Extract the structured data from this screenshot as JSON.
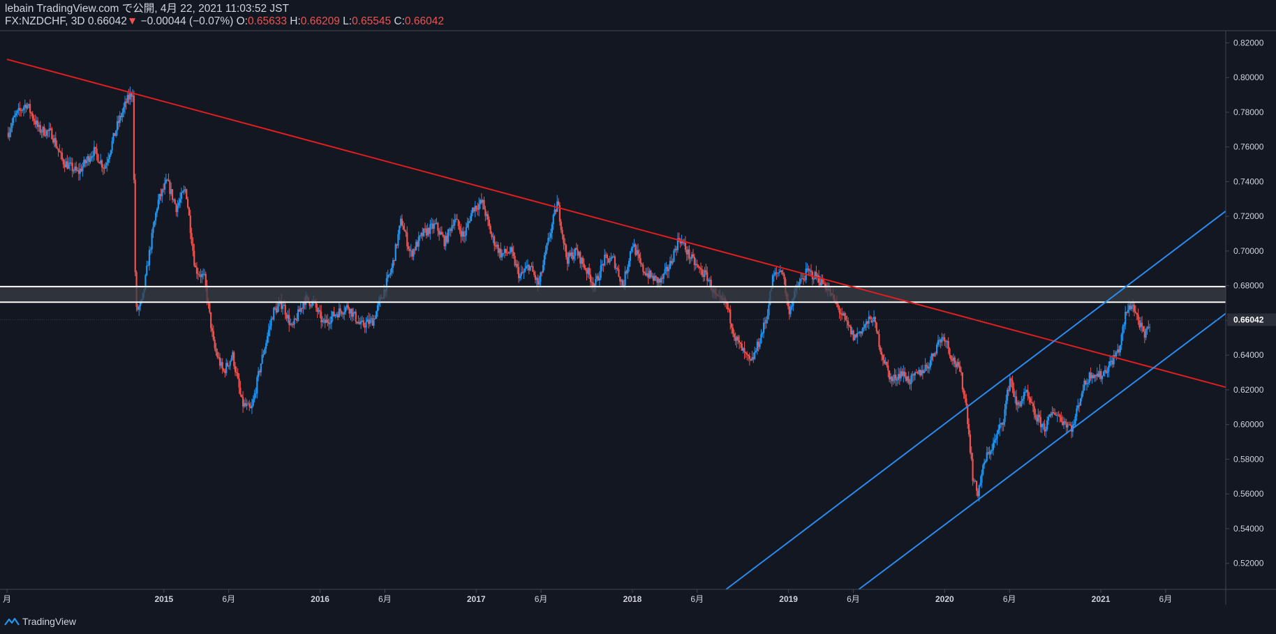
{
  "header": {
    "published_line": "lebain TradingView.com で公開, 4月 22, 2021 11:03:52 JST",
    "symbol": "FX:NZDCHF, 3D",
    "last": "0.66042",
    "change_arrow": "▼",
    "change": "−0.00044 (−0.07%)",
    "o_label": "O:",
    "o_value": "0.65633",
    "h_label": "H:",
    "h_value": "0.66209",
    "l_label": "L:",
    "l_value": "0.65545",
    "c_label": "C:",
    "c_value": "0.66042"
  },
  "footer": {
    "brand": "TradingView"
  },
  "colors": {
    "background": "#131722",
    "up": "#2196f3",
    "down": "#ef5350",
    "trendline": "#e01e1e",
    "channel": "#2a8cf0",
    "zone_line": "#ffffff",
    "zone_fill": "#3a3d45",
    "axis_text": "#d1d4dc"
  },
  "chart_data": {
    "type": "candlestick",
    "symbol": "FX:NZDCHF",
    "interval": "3D",
    "ylim": [
      0.505,
      0.827
    ],
    "y_ticks": [
      "0.82000",
      "0.80000",
      "0.78000",
      "0.76000",
      "0.74000",
      "0.72000",
      "0.70000",
      "0.68000",
      "0.66000",
      "0.64000",
      "0.62000",
      "0.60000",
      "0.58000",
      "0.56000",
      "0.54000",
      "0.52000"
    ],
    "last_price_label": "0.66042",
    "last_price": 0.66042,
    "x_ticks": [
      {
        "label": "月",
        "t": 2013.995
      },
      {
        "label": "2015",
        "t": 2015.0
      },
      {
        "label": "6月",
        "t": 2015.415
      },
      {
        "label": "2016",
        "t": 2016.0
      },
      {
        "label": "6月",
        "t": 2016.415
      },
      {
        "label": "2017",
        "t": 2017.0
      },
      {
        "label": "6月",
        "t": 2017.415
      },
      {
        "label": "2018",
        "t": 2018.0
      },
      {
        "label": "6月",
        "t": 2018.415
      },
      {
        "label": "2019",
        "t": 2019.0
      },
      {
        "label": "6月",
        "t": 2019.415
      },
      {
        "label": "2020",
        "t": 2020.0
      },
      {
        "label": "6月",
        "t": 2020.415
      },
      {
        "label": "2021",
        "t": 2021.0
      },
      {
        "label": "6月",
        "t": 2021.415
      }
    ],
    "price_path": [
      [
        2014.0,
        0.768
      ],
      [
        2014.05,
        0.778
      ],
      [
        2014.12,
        0.785
      ],
      [
        2014.2,
        0.77
      ],
      [
        2014.28,
        0.768
      ],
      [
        2014.35,
        0.752
      ],
      [
        2014.45,
        0.745
      ],
      [
        2014.55,
        0.758
      ],
      [
        2014.62,
        0.748
      ],
      [
        2014.7,
        0.772
      ],
      [
        2014.76,
        0.786
      ],
      [
        2014.8,
        0.792
      ],
      [
        2014.82,
        0.665
      ],
      [
        2014.86,
        0.67
      ],
      [
        2014.9,
        0.695
      ],
      [
        2014.96,
        0.728
      ],
      [
        2015.02,
        0.74
      ],
      [
        2015.08,
        0.725
      ],
      [
        2015.14,
        0.736
      ],
      [
        2015.2,
        0.69
      ],
      [
        2015.26,
        0.684
      ],
      [
        2015.32,
        0.645
      ],
      [
        2015.38,
        0.63
      ],
      [
        2015.44,
        0.64
      ],
      [
        2015.5,
        0.612
      ],
      [
        2015.56,
        0.608
      ],
      [
        2015.62,
        0.635
      ],
      [
        2015.7,
        0.665
      ],
      [
        2015.76,
        0.67
      ],
      [
        2015.82,
        0.655
      ],
      [
        2015.9,
        0.672
      ],
      [
        2015.96,
        0.67
      ],
      [
        2016.02,
        0.658
      ],
      [
        2016.1,
        0.664
      ],
      [
        2016.18,
        0.668
      ],
      [
        2016.26,
        0.657
      ],
      [
        2016.34,
        0.66
      ],
      [
        2016.4,
        0.675
      ],
      [
        2016.46,
        0.69
      ],
      [
        2016.52,
        0.718
      ],
      [
        2016.58,
        0.698
      ],
      [
        2016.66,
        0.71
      ],
      [
        2016.74,
        0.715
      ],
      [
        2016.8,
        0.705
      ],
      [
        2016.86,
        0.719
      ],
      [
        2016.92,
        0.708
      ],
      [
        2016.98,
        0.725
      ],
      [
        2017.04,
        0.728
      ],
      [
        2017.1,
        0.708
      ],
      [
        2017.16,
        0.698
      ],
      [
        2017.22,
        0.7
      ],
      [
        2017.28,
        0.685
      ],
      [
        2017.34,
        0.692
      ],
      [
        2017.4,
        0.68
      ],
      [
        2017.46,
        0.705
      ],
      [
        2017.52,
        0.728
      ],
      [
        2017.58,
        0.695
      ],
      [
        2017.64,
        0.7
      ],
      [
        2017.7,
        0.69
      ],
      [
        2017.76,
        0.68
      ],
      [
        2017.82,
        0.695
      ],
      [
        2017.88,
        0.695
      ],
      [
        2017.94,
        0.68
      ],
      [
        2018.0,
        0.705
      ],
      [
        2018.06,
        0.69
      ],
      [
        2018.12,
        0.685
      ],
      [
        2018.18,
        0.682
      ],
      [
        2018.24,
        0.692
      ],
      [
        2018.3,
        0.708
      ],
      [
        2018.36,
        0.698
      ],
      [
        2018.42,
        0.69
      ],
      [
        2018.48,
        0.685
      ],
      [
        2018.54,
        0.672
      ],
      [
        2018.6,
        0.67
      ],
      [
        2018.66,
        0.65
      ],
      [
        2018.72,
        0.64
      ],
      [
        2018.76,
        0.635
      ],
      [
        2018.82,
        0.65
      ],
      [
        2018.86,
        0.662
      ],
      [
        2018.9,
        0.685
      ],
      [
        2018.96,
        0.69
      ],
      [
        2019.0,
        0.665
      ],
      [
        2019.06,
        0.68
      ],
      [
        2019.12,
        0.688
      ],
      [
        2019.18,
        0.685
      ],
      [
        2019.24,
        0.68
      ],
      [
        2019.3,
        0.67
      ],
      [
        2019.36,
        0.66
      ],
      [
        2019.42,
        0.65
      ],
      [
        2019.48,
        0.656
      ],
      [
        2019.54,
        0.662
      ],
      [
        2019.6,
        0.64
      ],
      [
        2019.66,
        0.625
      ],
      [
        2019.72,
        0.63
      ],
      [
        2019.78,
        0.625
      ],
      [
        2019.84,
        0.63
      ],
      [
        2019.9,
        0.635
      ],
      [
        2019.96,
        0.648
      ],
      [
        2020.0,
        0.651
      ],
      [
        2020.04,
        0.64
      ],
      [
        2020.1,
        0.63
      ],
      [
        2020.14,
        0.61
      ],
      [
        2020.18,
        0.57
      ],
      [
        2020.21,
        0.56
      ],
      [
        2020.26,
        0.58
      ],
      [
        2020.32,
        0.59
      ],
      [
        2020.38,
        0.605
      ],
      [
        2020.42,
        0.628
      ],
      [
        2020.46,
        0.61
      ],
      [
        2020.52,
        0.618
      ],
      [
        2020.58,
        0.605
      ],
      [
        2020.64,
        0.598
      ],
      [
        2020.7,
        0.608
      ],
      [
        2020.76,
        0.602
      ],
      [
        2020.82,
        0.598
      ],
      [
        2020.88,
        0.62
      ],
      [
        2020.94,
        0.63
      ],
      [
        2021.0,
        0.628
      ],
      [
        2021.06,
        0.635
      ],
      [
        2021.12,
        0.644
      ],
      [
        2021.16,
        0.664
      ],
      [
        2021.2,
        0.67
      ],
      [
        2021.24,
        0.66
      ],
      [
        2021.28,
        0.65
      ],
      [
        2021.32,
        0.6604
      ]
    ],
    "drawings": {
      "zone": {
        "y_top": 0.6795,
        "y_bottom": 0.6705
      },
      "trendline": {
        "p1": [
          2013.995,
          0.8105
        ],
        "p2": [
          2021.8,
          0.6215
        ]
      },
      "channel_upper": {
        "p1": [
          2018.6,
          0.505
        ],
        "p2": [
          2021.8,
          0.723
        ]
      },
      "channel_lower": {
        "p1": [
          2019.45,
          0.505
        ],
        "p2": [
          2021.8,
          0.664
        ]
      }
    }
  }
}
